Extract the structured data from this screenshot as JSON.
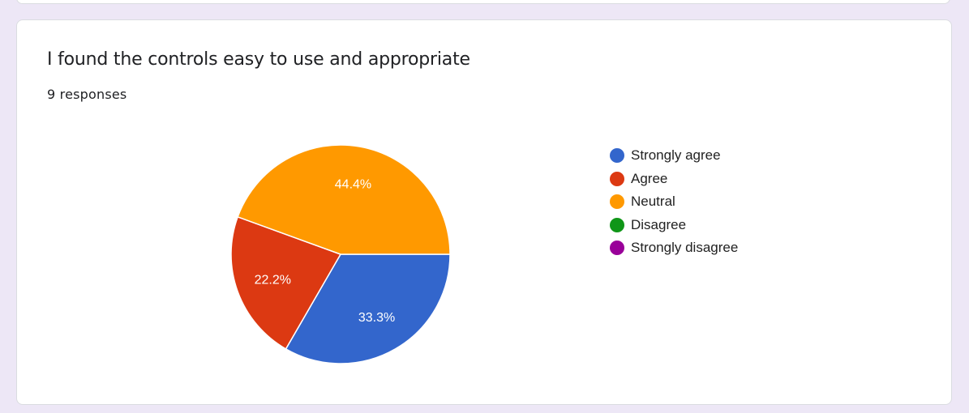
{
  "card": {
    "title": "I found the controls easy to use and appropriate",
    "responses": "9 responses"
  },
  "chart_data": {
    "type": "pie",
    "categories": [
      "Strongly agree",
      "Agree",
      "Neutral",
      "Disagree",
      "Strongly disagree"
    ],
    "values": [
      33.3,
      22.2,
      44.4,
      0,
      0
    ],
    "data_labels": [
      "33.3%",
      "22.2%",
      "44.4%",
      "",
      ""
    ],
    "colors": [
      "#3366cc",
      "#dc3912",
      "#ff9900",
      "#109618",
      "#990099"
    ],
    "legend_position": "right"
  }
}
